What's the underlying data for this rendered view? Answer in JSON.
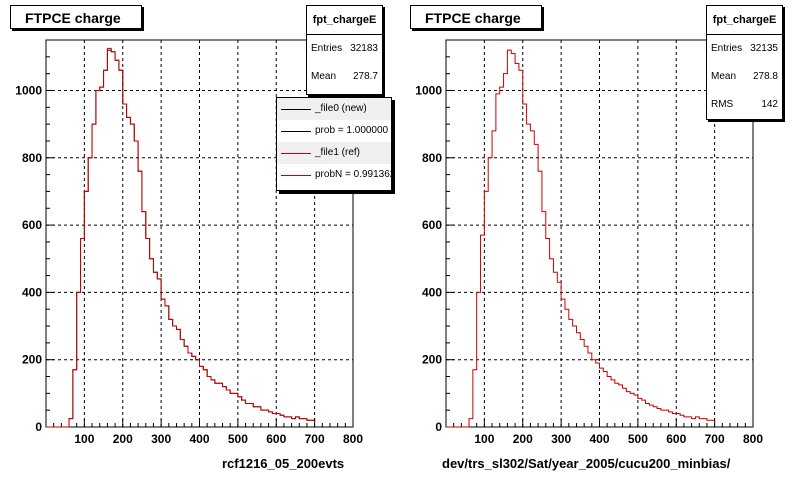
{
  "pads": [
    {
      "title": "FTPCE charge",
      "stats": {
        "name": "fpt_chargeE",
        "rows": [
          {
            "label": "Entries",
            "value": "32183"
          },
          {
            "label": "Mean",
            "value": "278.7"
          }
        ]
      },
      "legend": [
        {
          "label": "_file0 (new)",
          "color": "#000000"
        },
        {
          "label": "prob = 1.000000",
          "color": "#000000"
        },
        {
          "label": "_file1 (ref)",
          "color": "#cc0000"
        },
        {
          "label": "probN = 0.991362",
          "color": "#cc0000"
        }
      ],
      "xlabel": "rcf1216_05_200evts"
    },
    {
      "title": "FTPCE charge",
      "stats": {
        "name": "fpt_chargeE",
        "rows": [
          {
            "label": "Entries",
            "value": "32135"
          },
          {
            "label": "Mean",
            "value": "278.8"
          },
          {
            "label": "RMS",
            "value": "142"
          }
        ]
      },
      "legend": [],
      "xlabel": "dev/trs_sl302/Sat/year_2005/cucu200_minbias/"
    }
  ],
  "chart_data": [
    {
      "type": "bar",
      "style": "step-histogram",
      "title": "FTPCE charge",
      "xlabel": "rcf1216_05_200evts",
      "ylabel": "",
      "xlim": [
        0,
        800
      ],
      "ylim": [
        0,
        1150
      ],
      "grid": true,
      "legend_position": "top-right",
      "xticks": [
        100,
        200,
        300,
        400,
        500,
        600,
        700,
        800
      ],
      "yticks": [
        0,
        200,
        400,
        600,
        800,
        1000
      ],
      "bin_width": 10,
      "x_start": 60,
      "series": [
        {
          "name": "_file0 (new)",
          "color": "#000000",
          "values": [
            25,
            170,
            400,
            560,
            700,
            800,
            900,
            1000,
            1010,
            1060,
            1120,
            1115,
            1090,
            1060,
            960,
            920,
            900,
            850,
            760,
            640,
            560,
            500,
            460,
            440,
            380,
            360,
            320,
            300,
            290,
            260,
            240,
            220,
            210,
            200,
            180,
            170,
            150,
            140,
            130,
            130,
            120,
            110,
            100,
            100,
            90,
            80,
            70,
            70,
            60,
            60,
            50,
            50,
            45,
            40,
            40,
            35,
            30,
            30,
            25,
            30,
            25,
            25,
            20,
            20
          ]
        },
        {
          "name": "_file1 (ref)",
          "color": "#cc0000",
          "values": [
            25,
            170,
            400,
            560,
            700,
            800,
            900,
            1000,
            1010,
            1060,
            1125,
            1115,
            1090,
            1060,
            960,
            920,
            900,
            850,
            760,
            640,
            560,
            500,
            460,
            440,
            380,
            360,
            320,
            300,
            290,
            260,
            240,
            220,
            210,
            200,
            180,
            170,
            150,
            140,
            130,
            130,
            120,
            110,
            100,
            100,
            90,
            80,
            70,
            70,
            60,
            60,
            50,
            50,
            45,
            40,
            40,
            35,
            30,
            30,
            25,
            30,
            25,
            25,
            20,
            20
          ]
        }
      ]
    },
    {
      "type": "bar",
      "style": "step-histogram",
      "title": "FTPCE charge",
      "xlabel": "dev/trs_sl302/Sat/year_2005/cucu200_minbias/",
      "ylabel": "",
      "xlim": [
        0,
        800
      ],
      "ylim": [
        0,
        1150
      ],
      "grid": true,
      "xticks": [
        100,
        200,
        300,
        400,
        500,
        600,
        700,
        800
      ],
      "yticks": [
        0,
        200,
        400,
        600,
        800,
        1000
      ],
      "bin_width": 10,
      "x_start": 60,
      "series": [
        {
          "name": "_file1 (ref)",
          "color": "#cc0000",
          "values": [
            25,
            170,
            400,
            570,
            700,
            800,
            880,
            990,
            1010,
            1050,
            1120,
            1110,
            1080,
            1060,
            960,
            900,
            880,
            840,
            760,
            640,
            560,
            500,
            460,
            430,
            380,
            350,
            320,
            300,
            280,
            260,
            240,
            220,
            200,
            190,
            175,
            165,
            150,
            140,
            130,
            125,
            115,
            105,
            100,
            95,
            85,
            80,
            70,
            65,
            60,
            55,
            50,
            50,
            45,
            40,
            40,
            35,
            30,
            30,
            25,
            30,
            25,
            25,
            20,
            20
          ]
        }
      ]
    }
  ]
}
